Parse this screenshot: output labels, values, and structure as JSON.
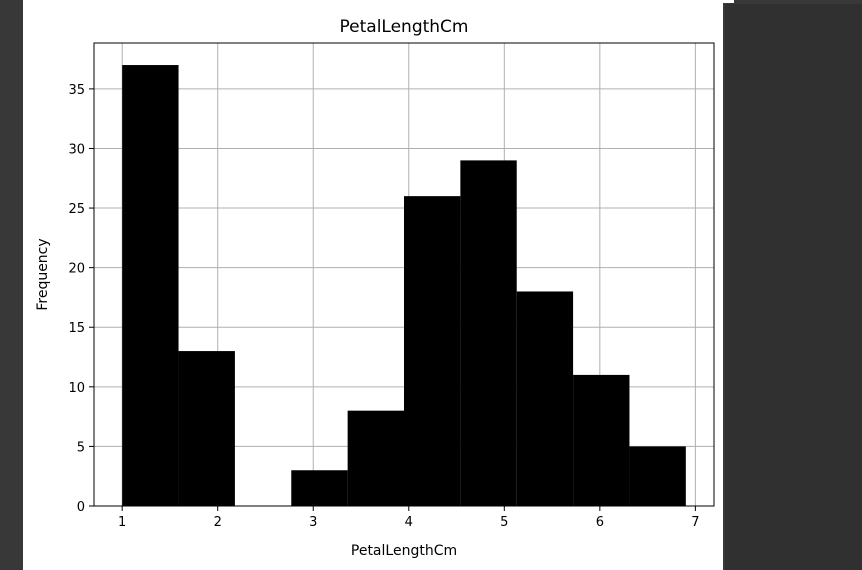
{
  "chart_data": {
    "type": "bar",
    "title": "PetalLengthCm",
    "xlabel": "PetalLengthCm",
    "ylabel": "Frequency",
    "bin_edges": [
      1.0,
      1.59,
      2.18,
      2.77,
      3.36,
      3.95,
      4.54,
      5.13,
      5.72,
      6.31,
      6.9
    ],
    "values": [
      37,
      13,
      0,
      3,
      8,
      26,
      29,
      18,
      11,
      5
    ],
    "xlim": [
      0.705,
      7.195
    ],
    "ylim": [
      0,
      38.85
    ],
    "x_ticks": [
      1,
      2,
      3,
      4,
      5,
      6,
      7
    ],
    "y_ticks": [
      0,
      5,
      10,
      15,
      20,
      25,
      30,
      35
    ],
    "grid": true,
    "bar_color": "#000000",
    "grid_color": "#b0b0b0"
  }
}
